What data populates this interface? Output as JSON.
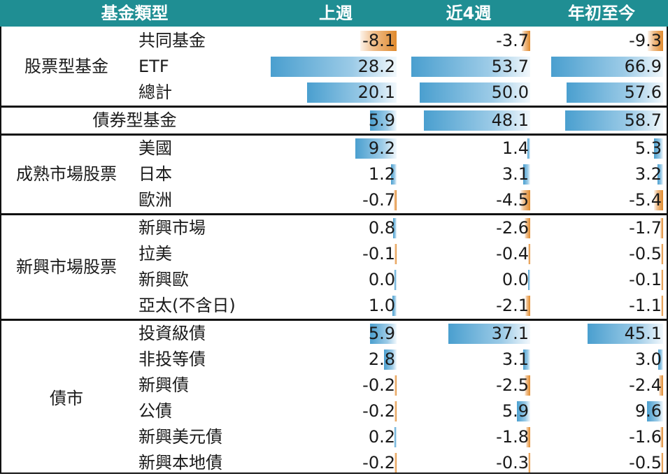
{
  "headers": {
    "category": "基金類型",
    "week": "上週",
    "four_weeks": "近4週",
    "ytd": "年初至今"
  },
  "colors": {
    "header_bg": "#1f8e93",
    "header_text": "#ffffff",
    "positive_bar": "#4a9fcf",
    "negative_bar": "#e08a2d"
  },
  "scale": {
    "week_max": 28.2,
    "four_weeks_max": 53.7,
    "ytd_max": 66.9
  },
  "groups": [
    {
      "label": "股票型基金",
      "rows": [
        {
          "label": "共同基金",
          "week": "-8.1",
          "four_weeks": "-3.7",
          "ytd": "-9.3"
        },
        {
          "label": "ETF",
          "week": "28.2",
          "four_weeks": "53.7",
          "ytd": "66.9"
        },
        {
          "label": "總計",
          "week": "20.1",
          "four_weeks": "50.0",
          "ytd": "57.6"
        }
      ]
    },
    {
      "label": "債券型基金",
      "rows": [
        {
          "label": "",
          "week": "5.9",
          "four_weeks": "48.1",
          "ytd": "58.7"
        }
      ]
    },
    {
      "label": "成熟市場股票",
      "rows": [
        {
          "label": "美國",
          "week": "9.2",
          "four_weeks": "1.4",
          "ytd": "5.3"
        },
        {
          "label": "日本",
          "week": "1.2",
          "four_weeks": "3.1",
          "ytd": "3.2"
        },
        {
          "label": "歐洲",
          "week": "-0.7",
          "four_weeks": "-4.5",
          "ytd": "-5.4"
        }
      ]
    },
    {
      "label": "新興市場股票",
      "rows": [
        {
          "label": "新興市場",
          "week": "0.8",
          "four_weeks": "-2.6",
          "ytd": "-1.7"
        },
        {
          "label": "拉美",
          "week": "-0.1",
          "four_weeks": "-0.4",
          "ytd": "-0.5"
        },
        {
          "label": "新興歐",
          "week": "0.0",
          "four_weeks": "0.0",
          "ytd": "-0.1"
        },
        {
          "label": "亞太(不含日)",
          "week": "1.0",
          "four_weeks": "-2.1",
          "ytd": "-1.1"
        }
      ]
    },
    {
      "label": "債市",
      "rows": [
        {
          "label": "投資級債",
          "week": "5.9",
          "four_weeks": "37.1",
          "ytd": "45.1"
        },
        {
          "label": "非投等債",
          "week": "2.8",
          "four_weeks": "3.1",
          "ytd": "3.0"
        },
        {
          "label": "新興債",
          "week": "-0.2",
          "four_weeks": "-2.5",
          "ytd": "-2.4"
        },
        {
          "label": "公債",
          "week": "-0.2",
          "four_weeks": "5.9",
          "ytd": "9.6"
        },
        {
          "label": "新興美元債",
          "week": "0.2",
          "four_weeks": "-1.8",
          "ytd": "-1.6"
        },
        {
          "label": "新興本地債",
          "week": "-0.2",
          "four_weeks": "-0.3",
          "ytd": "-0.5"
        }
      ]
    }
  ]
}
